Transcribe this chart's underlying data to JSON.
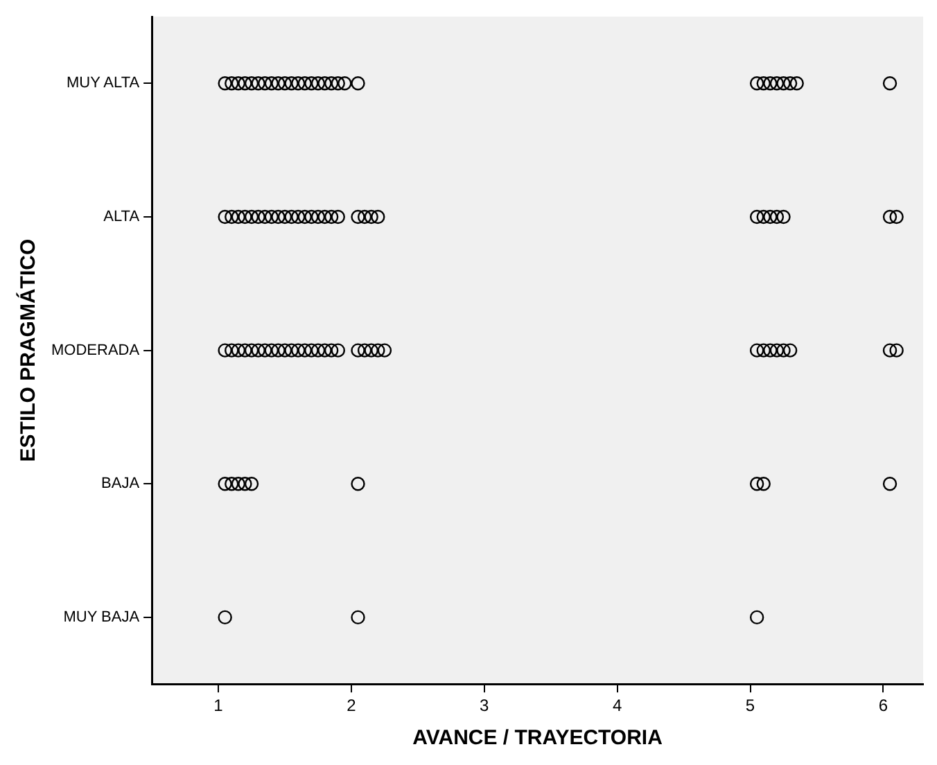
{
  "chart_data": {
    "type": "scatter",
    "orientation": "horizontal",
    "xlabel": "AVANCE / TRAYECTORIA",
    "ylabel": "ESTILO PRAGMÁTICO",
    "categories": [
      "MUY ALTA",
      "ALTA",
      "MODERADA",
      "BAJA",
      "MUY BAJA"
    ],
    "xlim": [
      0.5,
      6.3
    ],
    "xticks": [
      1,
      2,
      3,
      4,
      5,
      6
    ],
    "grid": false,
    "legend": false,
    "marker": "circle",
    "series": [
      {
        "color": "#000000",
        "values": [
          1.05,
          1.1,
          1.15,
          1.2,
          1.25,
          1.3,
          1.35,
          1.4,
          1.45,
          1.5,
          1.55,
          1.6,
          1.65,
          1.7,
          1.75,
          1.8,
          1.85,
          1.9,
          1.95,
          2.05,
          5.05,
          5.1,
          5.15,
          5.2,
          5.25,
          5.3,
          5.35,
          6.05
        ],
        "x": [
          "MUY ALTA",
          "MUY ALTA",
          "MUY ALTA",
          "MUY ALTA",
          "MUY ALTA",
          "MUY ALTA",
          "MUY ALTA",
          "MUY ALTA",
          "MUY ALTA",
          "MUY ALTA",
          "MUY ALTA",
          "MUY ALTA",
          "MUY ALTA",
          "MUY ALTA",
          "MUY ALTA",
          "MUY ALTA",
          "MUY ALTA",
          "MUY ALTA",
          "MUY ALTA",
          "MUY ALTA",
          "MUY ALTA",
          "MUY ALTA",
          "MUY ALTA",
          "MUY ALTA",
          "MUY ALTA",
          "MUY ALTA",
          "MUY ALTA",
          "MUY ALTA"
        ]
      },
      {
        "color": "#000000",
        "values": [
          1.05,
          1.1,
          1.15,
          1.2,
          1.25,
          1.3,
          1.35,
          1.4,
          1.45,
          1.5,
          1.55,
          1.6,
          1.65,
          1.7,
          1.75,
          1.8,
          1.85,
          1.9,
          2.05,
          2.1,
          2.15,
          2.2,
          5.05,
          5.1,
          5.15,
          5.2,
          5.25,
          6.05,
          6.1
        ],
        "x": [
          "ALTA",
          "ALTA",
          "ALTA",
          "ALTA",
          "ALTA",
          "ALTA",
          "ALTA",
          "ALTA",
          "ALTA",
          "ALTA",
          "ALTA",
          "ALTA",
          "ALTA",
          "ALTA",
          "ALTA",
          "ALTA",
          "ALTA",
          "ALTA",
          "ALTA",
          "ALTA",
          "ALTA",
          "ALTA",
          "ALTA",
          "ALTA",
          "ALTA",
          "ALTA",
          "ALTA",
          "ALTA",
          "ALTA"
        ]
      },
      {
        "color": "#000000",
        "values": [
          1.05,
          1.1,
          1.15,
          1.2,
          1.25,
          1.3,
          1.35,
          1.4,
          1.45,
          1.5,
          1.55,
          1.6,
          1.65,
          1.7,
          1.75,
          1.8,
          1.85,
          1.9,
          2.05,
          2.1,
          2.15,
          2.2,
          2.25,
          5.05,
          5.1,
          5.15,
          5.2,
          5.25,
          5.3,
          6.05,
          6.1
        ],
        "x": [
          "MODERADA",
          "MODERADA",
          "MODERADA",
          "MODERADA",
          "MODERADA",
          "MODERADA",
          "MODERADA",
          "MODERADA",
          "MODERADA",
          "MODERADA",
          "MODERADA",
          "MODERADA",
          "MODERADA",
          "MODERADA",
          "MODERADA",
          "MODERADA",
          "MODERADA",
          "MODERADA",
          "MODERADA",
          "MODERADA",
          "MODERADA",
          "MODERADA",
          "MODERADA",
          "MODERADA",
          "MODERADA",
          "MODERADA",
          "MODERADA",
          "MODERADA",
          "MODERADA",
          "MODERADA",
          "MODERADA"
        ]
      },
      {
        "color": "#000000",
        "values": [
          1.05,
          1.1,
          1.15,
          1.2,
          1.25,
          2.05,
          5.05,
          5.1,
          6.05
        ],
        "x": [
          "BAJA",
          "BAJA",
          "BAJA",
          "BAJA",
          "BAJA",
          "BAJA",
          "BAJA",
          "BAJA",
          "BAJA"
        ]
      },
      {
        "color": "#000000",
        "values": [
          1.05,
          2.05,
          5.05
        ],
        "x": [
          "MUY BAJA",
          "MUY BAJA",
          "MUY BAJA"
        ]
      }
    ]
  }
}
